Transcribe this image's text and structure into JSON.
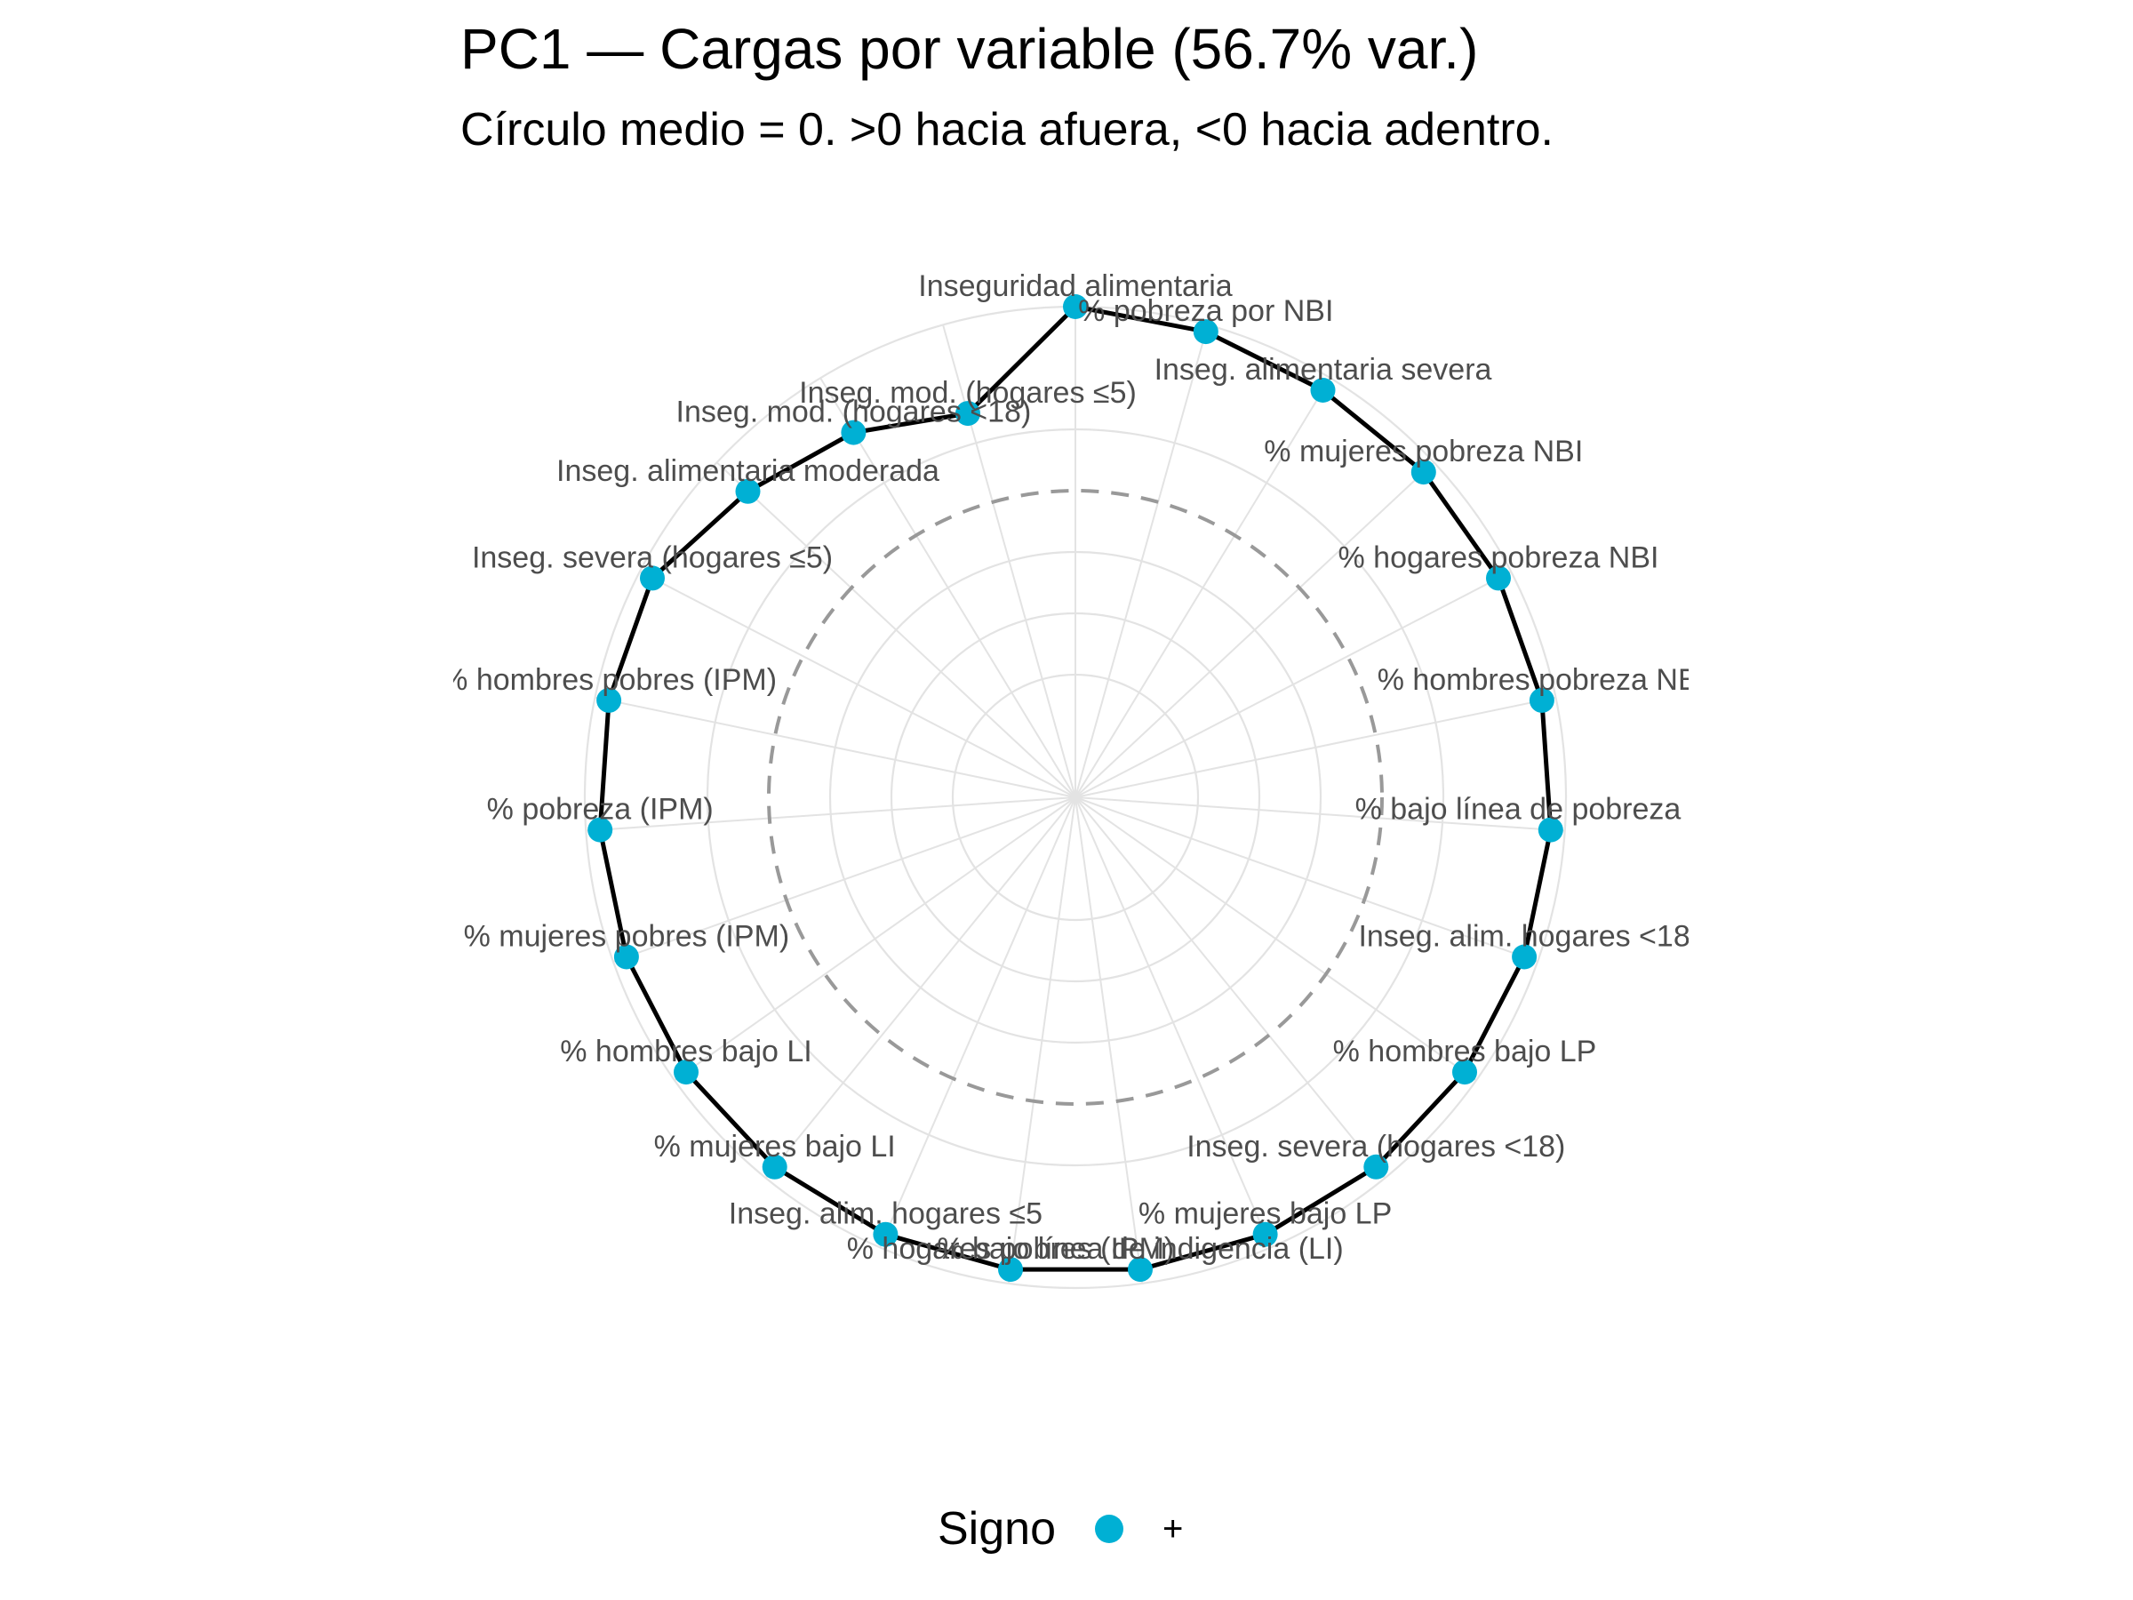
{
  "chart_data": {
    "type": "radar",
    "title": "PC1 — Cargas por variable (56.7% var.)",
    "subtitle": "Círculo medio = 0. >0 hacia afuera, <0 hacia adentro.",
    "legend": {
      "title": "Signo",
      "position": "bottom",
      "entries": [
        {
          "label": "+",
          "color": "#00b0d4"
        }
      ]
    },
    "colors": {
      "point": "#00b0d4",
      "line": "#000000",
      "grid": "#e3e3e3",
      "zero_circle": "#999999",
      "label": "#4d4d4d"
    },
    "reference_circle": "0",
    "variables": [
      "Inseguridad alimentaria",
      "% pobreza por NBI",
      "Inseg. alimentaria severa",
      "% mujeres pobreza NBI",
      "% hogares pobreza NBI",
      "% hombres pobreza NBI",
      "% bajo línea de pobreza (LP)",
      "Inseg. alim. hogares <18",
      "% hombres bajo LP",
      "Inseg. severa (hogares <18)",
      "% mujeres bajo LP",
      "% bajo línea de indigencia (LI)",
      "% hogares pobres (IPM)",
      "Inseg. alim. hogares ≤5",
      "% mujeres bajo LI",
      "% hombres bajo LI",
      "% mujeres pobres (IPM)",
      "% pobreza (IPM)",
      "% hombres pobres (IPM)",
      "Inseg. severa (hogares ≤5)",
      "Inseg. alimentaria moderada",
      "Inseg. mod. (hogares <18)",
      "Inseg. mod. (hogares ≤5)"
    ],
    "values": [
      0.26,
      0.25,
      0.24,
      0.24,
      0.24,
      0.24,
      0.24,
      0.24,
      0.24,
      0.24,
      0.24,
      0.24,
      0.24,
      0.24,
      0.24,
      0.24,
      0.24,
      0.24,
      0.24,
      0.24,
      0.2,
      0.17,
      0.13
    ],
    "signs": [
      "+",
      "+",
      "+",
      "+",
      "+",
      "+",
      "+",
      "+",
      "+",
      "+",
      "+",
      "+",
      "+",
      "+",
      "+",
      "+",
      "+",
      "+",
      "+",
      "+",
      "+",
      "+",
      "+"
    ],
    "grid": true
  }
}
